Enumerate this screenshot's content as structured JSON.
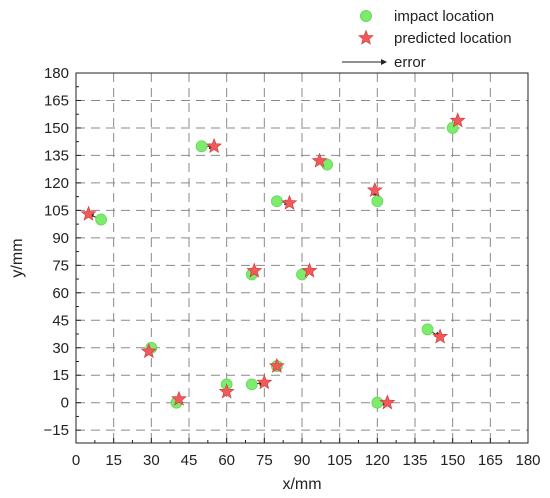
{
  "chart_data": {
    "type": "scatter",
    "xlabel": "x/mm",
    "ylabel": "y/mm",
    "xlim": [
      0,
      180
    ],
    "ylim": [
      -22,
      180
    ],
    "x_ticks": [
      0,
      15,
      30,
      45,
      60,
      75,
      90,
      105,
      120,
      135,
      150,
      165,
      180
    ],
    "y_ticks": [
      -15,
      0,
      15,
      30,
      45,
      60,
      75,
      90,
      105,
      120,
      135,
      150,
      165,
      180
    ],
    "grid": true,
    "grid_style": "dashed",
    "legend_position": "top-right, outside plot",
    "colors": {
      "impact": "#7CEB6E",
      "predicted": "#F05A5A",
      "error": "#222222",
      "grid": "#8a8a8a",
      "frame": "#222222"
    },
    "series": [
      {
        "name": "impact location",
        "marker": "circle",
        "points": [
          [
            10,
            100
          ],
          [
            50,
            140
          ],
          [
            100,
            130
          ],
          [
            80,
            110
          ],
          [
            120,
            110
          ],
          [
            70,
            70
          ],
          [
            90,
            70
          ],
          [
            150,
            150
          ],
          [
            30,
            30
          ],
          [
            40,
            0
          ],
          [
            60,
            10
          ],
          [
            70,
            10
          ],
          [
            80,
            20
          ],
          [
            120,
            0
          ],
          [
            140,
            40
          ]
        ]
      },
      {
        "name": "predicted location",
        "marker": "star",
        "points": [
          [
            5,
            103
          ],
          [
            55,
            140
          ],
          [
            97,
            132
          ],
          [
            85,
            109
          ],
          [
            119,
            116
          ],
          [
            71,
            72
          ],
          [
            93,
            72
          ],
          [
            152,
            154
          ],
          [
            29,
            28
          ],
          [
            41,
            2
          ],
          [
            60,
            6
          ],
          [
            75,
            11
          ],
          [
            80,
            20
          ],
          [
            124,
            0
          ],
          [
            145,
            36
          ]
        ]
      }
    ],
    "error_legend": "error"
  }
}
